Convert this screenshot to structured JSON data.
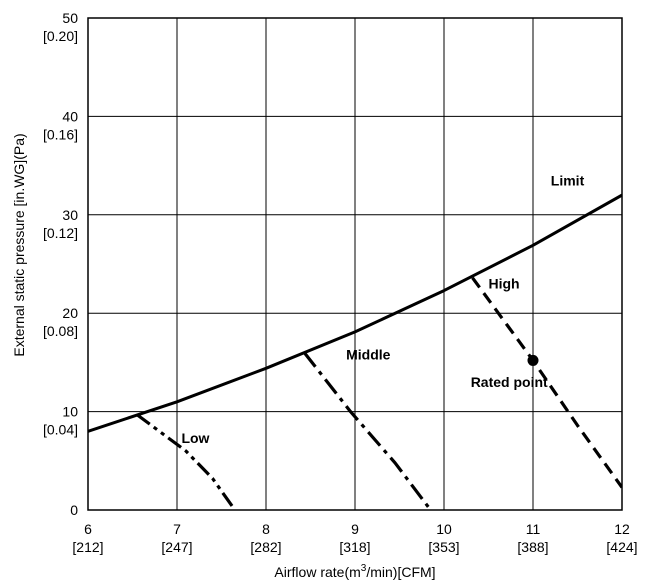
{
  "chart_data": {
    "type": "line",
    "xlabel_pre": "Airflow rate(m",
    "xlabel_sup": "3",
    "xlabel_post": "/min)[CFM]",
    "ylabel": "External static pressure  [in.WG](Pa)",
    "xlim": [
      6,
      12
    ],
    "ylim": [
      0,
      50
    ],
    "grid": true,
    "x_ticks": [
      {
        "value": 6,
        "label": "6",
        "sub": "[212]"
      },
      {
        "value": 7,
        "label": "7",
        "sub": "[247]"
      },
      {
        "value": 8,
        "label": "8",
        "sub": "[282]"
      },
      {
        "value": 9,
        "label": "9",
        "sub": "[318]"
      },
      {
        "value": 10,
        "label": "10",
        "sub": "[353]"
      },
      {
        "value": 11,
        "label": "11",
        "sub": "[388]"
      },
      {
        "value": 12,
        "label": "12",
        "sub": "[424]"
      }
    ],
    "y_ticks": [
      {
        "value": 0,
        "label": "0",
        "sub": ""
      },
      {
        "value": 10,
        "label": "10",
        "sub": "[0.04]"
      },
      {
        "value": 20,
        "label": "20",
        "sub": "[0.08]"
      },
      {
        "value": 30,
        "label": "30",
        "sub": "[0.12]"
      },
      {
        "value": 40,
        "label": "40",
        "sub": "[0.16]"
      },
      {
        "value": 50,
        "label": "50",
        "sub": "[0.20]"
      }
    ],
    "series": [
      {
        "name": "Limit",
        "dash": "solid",
        "points": [
          [
            6,
            8.0
          ],
          [
            7,
            11.0
          ],
          [
            8,
            14.4
          ],
          [
            9,
            18.1
          ],
          [
            10,
            22.3
          ],
          [
            11,
            26.9
          ],
          [
            12,
            32.0
          ]
        ]
      },
      {
        "name": "Low",
        "dash": "dash-dot-dot",
        "points": [
          [
            6.55,
            9.7
          ],
          [
            7.1,
            6.0
          ],
          [
            7.4,
            3.2
          ],
          [
            7.65,
            0
          ]
        ]
      },
      {
        "name": "Middle",
        "dash": "dash-dot",
        "points": [
          [
            8.43,
            16.0
          ],
          [
            8.95,
            10.0
          ],
          [
            9.45,
            4.8
          ],
          [
            9.85,
            0
          ]
        ]
      },
      {
        "name": "High",
        "dash": "dash",
        "points": [
          [
            10.32,
            23.6
          ],
          [
            11.0,
            15.2
          ],
          [
            11.5,
            8.6
          ],
          [
            12.0,
            2.3
          ]
        ]
      }
    ],
    "rated_point": {
      "label": "Rated point",
      "x": 11.0,
      "y": 15.2
    },
    "annotations": [
      {
        "text": "Limit",
        "x": 11.2,
        "y": 33.0
      },
      {
        "text": "High",
        "x": 10.5,
        "y": 22.5
      },
      {
        "text": "Middle",
        "x": 8.9,
        "y": 15.3
      },
      {
        "text": "Rated point",
        "x": 10.3,
        "y": 12.5
      },
      {
        "text": "Low",
        "x": 7.05,
        "y": 6.8
      }
    ]
  }
}
